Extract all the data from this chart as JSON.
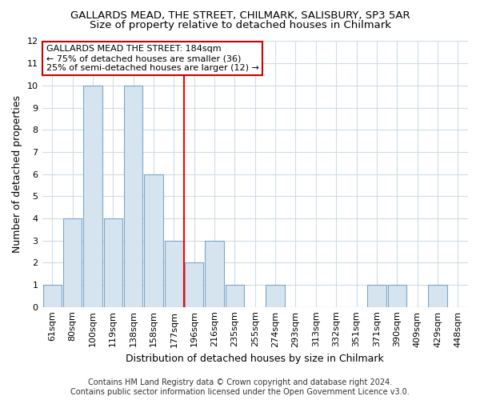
{
  "title": "GALLARDS MEAD, THE STREET, CHILMARK, SALISBURY, SP3 5AR",
  "subtitle": "Size of property relative to detached houses in Chilmark",
  "xlabel": "Distribution of detached houses by size in Chilmark",
  "ylabel": "Number of detached properties",
  "categories": [
    "61sqm",
    "80sqm",
    "100sqm",
    "119sqm",
    "138sqm",
    "158sqm",
    "177sqm",
    "196sqm",
    "216sqm",
    "235sqm",
    "255sqm",
    "274sqm",
    "293sqm",
    "313sqm",
    "332sqm",
    "351sqm",
    "371sqm",
    "390sqm",
    "409sqm",
    "429sqm",
    "448sqm"
  ],
  "values": [
    1,
    4,
    10,
    4,
    10,
    6,
    3,
    2,
    3,
    1,
    0,
    1,
    0,
    0,
    0,
    0,
    1,
    1,
    0,
    1,
    0
  ],
  "bar_color": "#d6e4f0",
  "bar_edge_color": "#7ba7c9",
  "red_line_index": 6.5,
  "annotation_line1": "GALLARDS MEAD THE STREET: 184sqm",
  "annotation_line2": "← 75% of detached houses are smaller (36)",
  "annotation_line3": "25% of semi-detached houses are larger (12) →",
  "annotation_box_color": "#ffffff",
  "annotation_box_edge": "#cc0000",
  "ylim": [
    0,
    12
  ],
  "yticks": [
    0,
    1,
    2,
    3,
    4,
    5,
    6,
    7,
    8,
    9,
    10,
    11,
    12
  ],
  "footer1": "Contains HM Land Registry data © Crown copyright and database right 2024.",
  "footer2": "Contains public sector information licensed under the Open Government Licence v3.0.",
  "bg_color": "#ffffff",
  "grid_color": "#d0dce8",
  "title_fontsize": 9.5,
  "subtitle_fontsize": 9.5,
  "tick_fontsize": 8,
  "ylabel_fontsize": 9,
  "xlabel_fontsize": 9,
  "footer_fontsize": 7
}
